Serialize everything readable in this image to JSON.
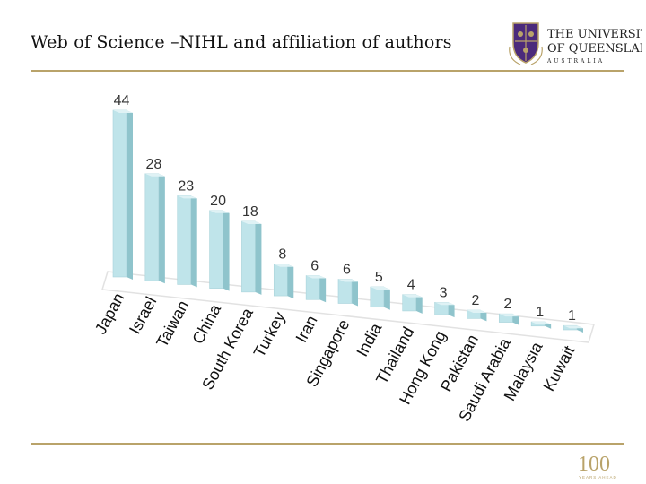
{
  "slide": {
    "title": "Web of Science –NIHL and affiliation of authors"
  },
  "logo": {
    "line1": "THE UNIVERSITY",
    "line2": "OF QUEENSLAND",
    "line3": "AUSTRALIA",
    "accent_color": "#4b2a7b",
    "gold_color": "#b9a36a"
  },
  "badge": {
    "number": "100",
    "caption": "YEARS AHEAD"
  },
  "chart_data": {
    "type": "bar",
    "categories": [
      "Japan",
      "Israel",
      "Taiwan",
      "China",
      "South Korea",
      "Turkey",
      "Iran",
      "Singapore",
      "India",
      "Thailand",
      "Hong Kong",
      "Pakistan",
      "Saudi Arabia",
      "Malaysia",
      "Kuwait"
    ],
    "values": [
      44,
      28,
      23,
      20,
      18,
      8,
      6,
      6,
      5,
      4,
      3,
      2,
      2,
      1,
      1
    ],
    "bar_color": "#bfe4ea",
    "bar_side_color": "#8fc4cc",
    "bar_top_color": "#dff2f5",
    "floor_color": "#e2e2e2"
  }
}
